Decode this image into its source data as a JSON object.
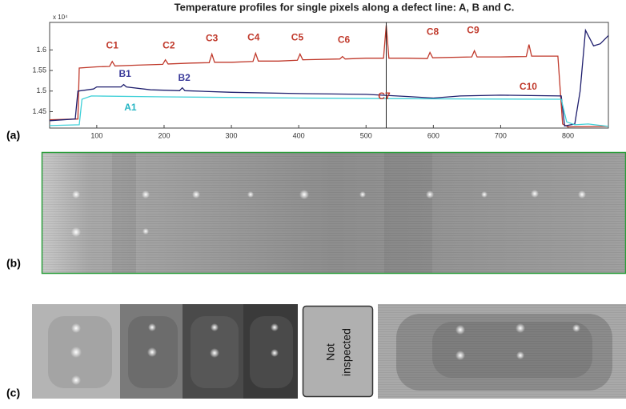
{
  "chart_data": {
    "type": "line",
    "title": "Temperature profiles for single pixels along a defect line: A, B and C.",
    "y_exponent_label": "x 10⁴",
    "xlim": [
      30,
      860
    ],
    "ylim": [
      1.41,
      1.667
    ],
    "xticks": [
      100,
      200,
      300,
      400,
      500,
      600,
      700,
      800
    ],
    "yticks": [
      1.45,
      1.5,
      1.55,
      1.6
    ],
    "cursor_x": 530,
    "series": [
      {
        "color": "#c0392b",
        "x": [
          30,
          72,
          74,
          100,
          119,
          123,
          127,
          160,
          198,
          202,
          206,
          240,
          267,
          271,
          275,
          300,
          332,
          336,
          340,
          370,
          398,
          402,
          406,
          461,
          465,
          469,
          500,
          526,
          530,
          534,
          560,
          591,
          595,
          599,
          657,
          661,
          665,
          700,
          738,
          742,
          746,
          785,
          792,
          800,
          860
        ],
        "values": [
          1.43,
          1.432,
          1.556,
          1.559,
          1.56,
          1.572,
          1.561,
          1.563,
          1.565,
          1.576,
          1.566,
          1.568,
          1.569,
          1.59,
          1.57,
          1.57,
          1.572,
          1.592,
          1.573,
          1.573,
          1.575,
          1.59,
          1.576,
          1.578,
          1.584,
          1.578,
          1.58,
          1.58,
          1.66,
          1.58,
          1.58,
          1.579,
          1.594,
          1.581,
          1.583,
          1.598,
          1.583,
          1.583,
          1.584,
          1.613,
          1.585,
          1.585,
          1.42,
          1.413,
          1.414
        ]
      },
      {
        "color": "#1f1f6e",
        "x": [
          30,
          68,
          72,
          95,
          100,
          136,
          140,
          144,
          180,
          223,
          227,
          231,
          300,
          400,
          500,
          560,
          600,
          640,
          700,
          790,
          795,
          810,
          818,
          826,
          838,
          848,
          860
        ],
        "values": [
          1.428,
          1.432,
          1.5,
          1.505,
          1.51,
          1.51,
          1.516,
          1.51,
          1.503,
          1.501,
          1.508,
          1.501,
          1.497,
          1.494,
          1.492,
          1.487,
          1.483,
          1.488,
          1.49,
          1.488,
          1.415,
          1.42,
          1.5,
          1.648,
          1.61,
          1.615,
          1.635
        ]
      },
      {
        "color": "#40d0d8",
        "x": [
          30,
          74,
          78,
          92,
          200,
          400,
          600,
          790,
          798,
          810,
          830,
          860
        ],
        "values": [
          1.416,
          1.418,
          1.48,
          1.488,
          1.486,
          1.483,
          1.481,
          1.48,
          1.425,
          1.418,
          1.42,
          1.414
        ]
      }
    ],
    "annotations": [
      {
        "text": "C1",
        "x": 123,
        "y": 1.61,
        "color": "#c0392b"
      },
      {
        "text": "C2",
        "x": 207,
        "y": 1.61,
        "color": "#c0392b"
      },
      {
        "text": "C3",
        "x": 271,
        "y": 1.627,
        "color": "#c0392b"
      },
      {
        "text": "C4",
        "x": 333,
        "y": 1.629,
        "color": "#c0392b"
      },
      {
        "text": "C5",
        "x": 398,
        "y": 1.629,
        "color": "#c0392b"
      },
      {
        "text": "C6",
        "x": 467,
        "y": 1.624,
        "color": "#c0392b"
      },
      {
        "text": "C7",
        "x": 527,
        "y": 1.486,
        "color": "#c0392b"
      },
      {
        "text": "C8",
        "x": 599,
        "y": 1.643,
        "color": "#c0392b"
      },
      {
        "text": "C9",
        "x": 659,
        "y": 1.647,
        "color": "#c0392b"
      },
      {
        "text": "C10",
        "x": 741,
        "y": 1.51,
        "color": "#c0392b"
      },
      {
        "text": "B1",
        "x": 142,
        "y": 1.541,
        "color": "#3b3b9a"
      },
      {
        "text": "B2",
        "x": 230,
        "y": 1.531,
        "color": "#3b3b9a"
      },
      {
        "text": "A1",
        "x": 150,
        "y": 1.459,
        "color": "#27b6c4"
      }
    ]
  },
  "panels": {
    "a": "(a)",
    "b": "(b)",
    "c": "(c)"
  },
  "not_inspected": [
    "Not",
    "inspected"
  ]
}
